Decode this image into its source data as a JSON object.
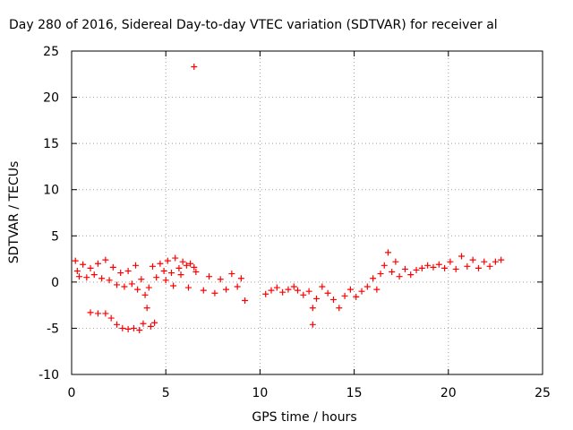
{
  "chart_data": {
    "type": "scatter",
    "title": "Day 280 of 2016, Sidereal Day-to-day VTEC variation (SDTVAR) for receiver al",
    "xlabel": "GPS time / hours",
    "ylabel": "SDTVAR / TECUs",
    "xlim": [
      0,
      25
    ],
    "ylim": [
      -10,
      25
    ],
    "xticks": [
      0,
      5,
      10,
      15,
      20,
      25
    ],
    "yticks": [
      -10,
      -5,
      0,
      5,
      10,
      15,
      20,
      25
    ],
    "xtick_labels": [
      "0",
      "5",
      "10",
      "15",
      "20",
      "25"
    ],
    "ytick_labels": [
      "-10",
      "-5",
      "0",
      "5",
      "10",
      "15",
      "20",
      "25"
    ],
    "grid": true,
    "marker": "+",
    "series": [
      {
        "name": "SDTVAR",
        "color": "#ff0000",
        "points": [
          [
            0.2,
            2.3
          ],
          [
            0.3,
            1.2
          ],
          [
            0.4,
            0.6
          ],
          [
            0.6,
            1.9
          ],
          [
            0.8,
            0.5
          ],
          [
            1.0,
            1.5
          ],
          [
            1.2,
            0.8
          ],
          [
            1.4,
            2.0
          ],
          [
            1.6,
            0.4
          ],
          [
            1.8,
            2.4
          ],
          [
            2.0,
            0.2
          ],
          [
            2.2,
            1.6
          ],
          [
            2.4,
            -0.3
          ],
          [
            2.6,
            1.0
          ],
          [
            2.8,
            -0.5
          ],
          [
            3.0,
            1.2
          ],
          [
            3.2,
            -0.2
          ],
          [
            3.4,
            1.8
          ],
          [
            3.5,
            -0.8
          ],
          [
            3.7,
            0.3
          ],
          [
            3.9,
            -1.4
          ],
          [
            4.1,
            -0.6
          ],
          [
            4.3,
            1.7
          ],
          [
            4.5,
            0.5
          ],
          [
            4.7,
            2.0
          ],
          [
            4.9,
            1.2
          ],
          [
            5.1,
            2.3
          ],
          [
            5.3,
            1.0
          ],
          [
            5.5,
            2.6
          ],
          [
            5.7,
            1.5
          ],
          [
            5.9,
            2.2
          ],
          [
            6.1,
            1.8
          ],
          [
            6.3,
            2.0
          ],
          [
            6.5,
            1.6
          ],
          [
            5.0,
            0.2
          ],
          [
            5.4,
            -0.4
          ],
          [
            5.8,
            0.8
          ],
          [
            6.2,
            -0.6
          ],
          [
            6.6,
            1.1
          ],
          [
            7.0,
            -0.9
          ],
          [
            7.3,
            0.6
          ],
          [
            7.6,
            -1.2
          ],
          [
            7.9,
            0.3
          ],
          [
            8.2,
            -0.8
          ],
          [
            8.5,
            0.9
          ],
          [
            8.8,
            -0.5
          ],
          [
            9.0,
            0.4
          ],
          [
            9.2,
            -2.0
          ],
          [
            1.0,
            -3.3
          ],
          [
            1.4,
            -3.4
          ],
          [
            1.8,
            -3.4
          ],
          [
            2.1,
            -3.9
          ],
          [
            2.4,
            -4.6
          ],
          [
            2.7,
            -5.0
          ],
          [
            3.0,
            -5.1
          ],
          [
            3.3,
            -5.0
          ],
          [
            3.6,
            -5.2
          ],
          [
            3.8,
            -4.5
          ],
          [
            4.0,
            -2.8
          ],
          [
            4.2,
            -4.8
          ],
          [
            4.4,
            -4.4
          ],
          [
            6.5,
            23.3
          ],
          [
            10.3,
            -1.3
          ],
          [
            10.6,
            -0.9
          ],
          [
            10.9,
            -0.6
          ],
          [
            11.2,
            -1.1
          ],
          [
            11.5,
            -0.8
          ],
          [
            11.8,
            -0.5
          ],
          [
            12.0,
            -0.9
          ],
          [
            12.3,
            -1.4
          ],
          [
            12.6,
            -1.0
          ],
          [
            12.8,
            -2.8
          ],
          [
            12.8,
            -4.6
          ],
          [
            13.0,
            -1.8
          ],
          [
            13.3,
            -0.5
          ],
          [
            13.6,
            -1.2
          ],
          [
            13.9,
            -1.9
          ],
          [
            14.2,
            -2.8
          ],
          [
            14.5,
            -1.5
          ],
          [
            14.8,
            -0.8
          ],
          [
            15.1,
            -1.6
          ],
          [
            15.4,
            -1.0
          ],
          [
            15.7,
            -0.5
          ],
          [
            16.0,
            0.4
          ],
          [
            16.2,
            -0.8
          ],
          [
            16.4,
            0.9
          ],
          [
            16.6,
            1.8
          ],
          [
            16.8,
            3.2
          ],
          [
            17.0,
            1.1
          ],
          [
            17.2,
            2.2
          ],
          [
            17.4,
            0.6
          ],
          [
            17.7,
            1.4
          ],
          [
            18.0,
            0.8
          ],
          [
            18.3,
            1.3
          ],
          [
            18.6,
            1.5
          ],
          [
            18.9,
            1.8
          ],
          [
            19.2,
            1.6
          ],
          [
            19.5,
            1.9
          ],
          [
            19.8,
            1.5
          ],
          [
            20.1,
            2.2
          ],
          [
            20.4,
            1.4
          ],
          [
            20.7,
            2.8
          ],
          [
            21.0,
            1.7
          ],
          [
            21.3,
            2.4
          ],
          [
            21.6,
            1.5
          ],
          [
            21.9,
            2.2
          ],
          [
            22.2,
            1.7
          ],
          [
            22.5,
            2.2
          ],
          [
            22.8,
            2.4
          ]
        ]
      }
    ]
  }
}
